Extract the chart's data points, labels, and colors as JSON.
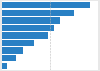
{
  "values": [
    92,
    75,
    60,
    54,
    48,
    33,
    22,
    15,
    5
  ],
  "bar_color": "#2980c4",
  "background_color": "#e8e8e8",
  "plot_bg_color": "#ffffff",
  "xlim": [
    0,
    100
  ],
  "bar_height": 0.85,
  "grid_color": "#bbbbbb",
  "grid_linestyle": "--",
  "grid_linewidth": 0.4,
  "grid_xticks": [
    50
  ]
}
